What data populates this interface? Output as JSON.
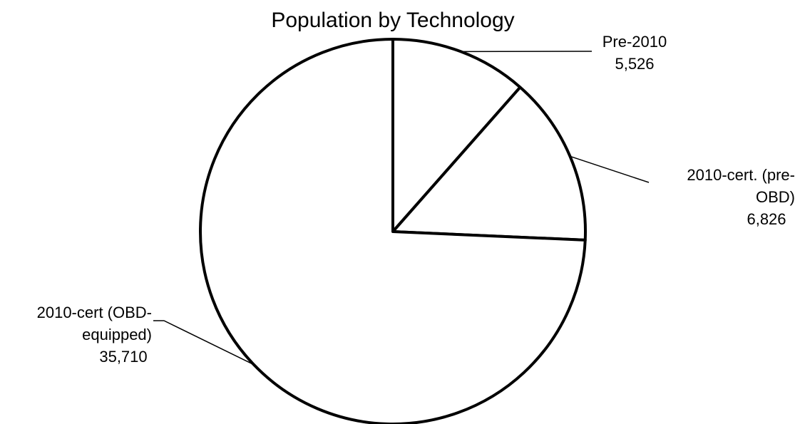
{
  "chart_data": {
    "type": "pie",
    "title": "Population by Technology",
    "categories": [
      "Pre-2010",
      "2010-cert. (pre-OBD)",
      "2010-cert (OBD-equipped)"
    ],
    "values": [
      5526,
      6826,
      35710
    ],
    "value_labels": [
      "5,526",
      "6,826",
      "35,710"
    ],
    "color": "#ffffff"
  }
}
